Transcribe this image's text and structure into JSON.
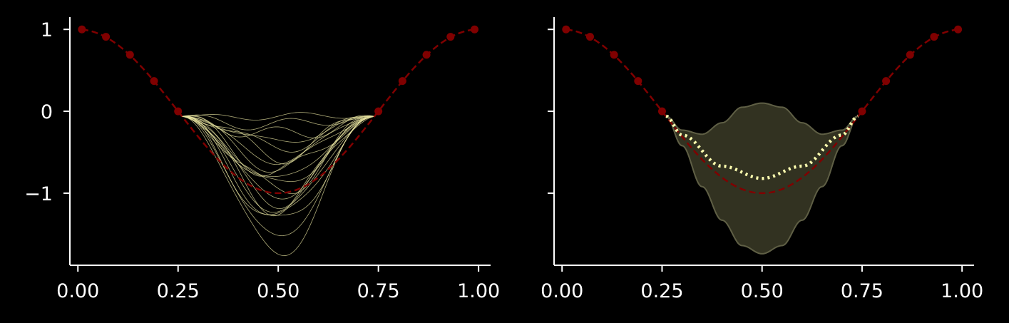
{
  "colors": {
    "background": "#000000",
    "axis": "#ffffff",
    "true_function": "#800000",
    "samples": "#e8e4a0",
    "mean": "#ffffb0",
    "band_fill": "#323221",
    "band_edge": "#5f5f45"
  },
  "chart_data": [
    {
      "type": "line",
      "description": "Gaussian-process posterior sample functions conditioned on observations",
      "x_ticks": [
        "0.00",
        "0.25",
        "0.50",
        "0.75",
        "1.00"
      ],
      "y_ticks": [
        "1",
        "0",
        "−1"
      ],
      "xlim": [
        -0.02,
        1.03
      ],
      "ylim": [
        -1.88,
        1.15
      ],
      "grid": false,
      "observed_points": {
        "x": [
          0.01,
          0.07,
          0.13,
          0.19,
          0.25,
          0.75,
          0.81,
          0.87,
          0.93,
          0.99
        ],
        "y": [
          1.0,
          0.91,
          0.69,
          0.37,
          0.0,
          0.0,
          0.37,
          0.69,
          0.91,
          1.0
        ]
      },
      "true_function": "cos(2*pi*x), dashed",
      "sample_curves": {
        "x_span": [
          0.26,
          0.74
        ],
        "mid_values": [
          -0.06,
          -0.18,
          -0.32,
          -0.38,
          -0.44,
          -0.52,
          -0.6,
          -0.68,
          -0.76,
          -0.84,
          -0.92,
          -0.98,
          -1.04,
          -1.1,
          -1.16,
          -1.22,
          -1.3,
          -1.4,
          -1.55,
          -1.74
        ]
      }
    },
    {
      "type": "area",
      "description": "Gaussian-process posterior mean with confidence band",
      "x_ticks": [
        "0.00",
        "0.25",
        "0.50",
        "0.75",
        "1.00"
      ],
      "y_ticks": [
        "1",
        "0",
        "−1"
      ],
      "xlim": [
        -0.02,
        1.03
      ],
      "ylim": [
        -1.88,
        1.15
      ],
      "grid": false,
      "observed_points": {
        "x": [
          0.01,
          0.07,
          0.13,
          0.19,
          0.25,
          0.75,
          0.81,
          0.87,
          0.93,
          0.99
        ],
        "y": [
          1.0,
          0.91,
          0.69,
          0.37,
          0.0,
          0.0,
          0.37,
          0.69,
          0.91,
          1.0
        ]
      },
      "true_function": "cos(2*pi*x), dashed",
      "posterior_mean": {
        "x": [
          0.26,
          0.3,
          0.4,
          0.5,
          0.6,
          0.7,
          0.74
        ],
        "y": [
          -0.06,
          -0.29,
          -0.67,
          -0.82,
          -0.67,
          -0.29,
          -0.06
        ]
      },
      "confidence_band": {
        "x": [
          0.26,
          0.3,
          0.35,
          0.4,
          0.45,
          0.5,
          0.55,
          0.6,
          0.65,
          0.7,
          0.74
        ],
        "upper": [
          -0.06,
          -0.23,
          -0.28,
          -0.14,
          0.05,
          0.1,
          0.05,
          -0.14,
          -0.28,
          -0.23,
          -0.06
        ],
        "lower": [
          -0.06,
          -0.42,
          -0.92,
          -1.33,
          -1.64,
          -1.74,
          -1.64,
          -1.33,
          -0.92,
          -0.42,
          -0.06
        ]
      }
    }
  ]
}
